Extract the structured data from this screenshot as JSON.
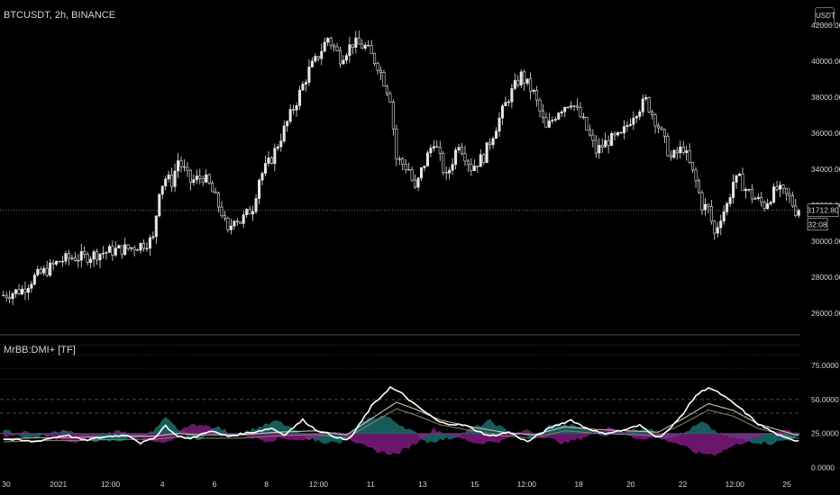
{
  "header": {
    "symbol_label": "BTCUSDT, 2h, BINANCE",
    "currency_badge": "USDT"
  },
  "indicator": {
    "label": "MrBB:DMI+ [TF]"
  },
  "price_marker": {
    "value_label": "31712.80",
    "countdown_label": "32:08"
  },
  "colors": {
    "background": "#000000",
    "text": "#d1d4dc",
    "candle": "#e6e6e6",
    "current_price_line": "#9598a1",
    "pane_divider": "#4a4e59",
    "band_red_dashed": "#5c2e2e",
    "dmi_plus_fill": "#1f7a7a",
    "dmi_minus_fill": "#8e1f8e",
    "adx_line": "#ffffff",
    "bb_line": "#c9c2a8"
  },
  "chart_data": [
    {
      "type": "candlestick",
      "title": "",
      "x_tick_labels": [
        "30",
        "2021",
        "12:00",
        "4",
        "6",
        "8",
        "12:00",
        "11",
        "13",
        "15",
        "12:00",
        "18",
        "20",
        "22",
        "12:00",
        "25"
      ],
      "y_tick_labels": [
        "42000.00",
        "40000.00",
        "38000.00",
        "36000.00",
        "34000.00",
        "32000.00",
        "30000.00",
        "28000.00",
        "26000.00"
      ],
      "ylim": [
        25000,
        43000
      ],
      "current_price": 31712.8,
      "close_path": [
        [
          0,
          27000
        ],
        [
          6,
          27300
        ],
        [
          10,
          28000
        ],
        [
          14,
          28400
        ],
        [
          18,
          28900
        ],
        [
          22,
          29100
        ],
        [
          26,
          29100
        ],
        [
          30,
          29300
        ],
        [
          36,
          29500
        ],
        [
          40,
          29600
        ],
        [
          44,
          29800
        ],
        [
          48,
          30100
        ],
        [
          50,
          32900
        ],
        [
          52,
          33500
        ],
        [
          54,
          33300
        ],
        [
          56,
          34500
        ],
        [
          60,
          33300
        ],
        [
          64,
          33600
        ],
        [
          66,
          33100
        ],
        [
          70,
          31600
        ],
        [
          72,
          30400
        ],
        [
          74,
          31400
        ],
        [
          76,
          31100
        ],
        [
          78,
          31500
        ],
        [
          80,
          31900
        ],
        [
          82,
          33500
        ],
        [
          86,
          34600
        ],
        [
          90,
          36200
        ],
        [
          94,
          37800
        ],
        [
          98,
          39500
        ],
        [
          100,
          40000
        ],
        [
          104,
          41300
        ],
        [
          108,
          40200
        ],
        [
          112,
          41000
        ],
        [
          116,
          40800
        ],
        [
          120,
          39800
        ],
        [
          124,
          38000
        ],
        [
          126,
          34600
        ],
        [
          130,
          34000
        ],
        [
          132,
          32800
        ],
        [
          134,
          33900
        ],
        [
          138,
          35600
        ],
        [
          142,
          33500
        ],
        [
          146,
          35500
        ],
        [
          150,
          34100
        ],
        [
          154,
          34700
        ],
        [
          158,
          36400
        ],
        [
          162,
          38000
        ],
        [
          166,
          39200
        ],
        [
          170,
          38200
        ],
        [
          174,
          36200
        ],
        [
          178,
          37300
        ],
        [
          182,
          37800
        ],
        [
          186,
          36600
        ],
        [
          190,
          35000
        ],
        [
          194,
          35600
        ],
        [
          198,
          35800
        ],
        [
          202,
          37100
        ],
        [
          206,
          37800
        ],
        [
          210,
          36400
        ],
        [
          214,
          34600
        ],
        [
          218,
          35200
        ],
        [
          222,
          33300
        ],
        [
          224,
          32000
        ],
        [
          226,
          31800
        ],
        [
          228,
          30400
        ],
        [
          230,
          31400
        ],
        [
          232,
          32000
        ],
        [
          234,
          33300
        ],
        [
          236,
          33400
        ],
        [
          238,
          32900
        ],
        [
          240,
          32500
        ],
        [
          244,
          32000
        ],
        [
          246,
          32500
        ],
        [
          248,
          32900
        ],
        [
          252,
          32400
        ],
        [
          254,
          31712.8
        ]
      ]
    },
    {
      "type": "line",
      "title": "MrBB:DMI+ [TF]",
      "y_tick_labels": [
        "75.0000",
        "50.0000",
        "25.0000",
        "0.0000"
      ],
      "ylim": [
        -3,
        95
      ],
      "hlines_dotted_red": [
        65,
        73,
        83,
        90
      ],
      "hlines_dashed": [
        50,
        40
      ],
      "hline_solid": 25,
      "series": [
        {
          "key": "adx",
          "values": [
            [
              0,
              21
            ],
            [
              10,
              19
            ],
            [
              20,
              24
            ],
            [
              26,
              20
            ],
            [
              34,
              23
            ],
            [
              40,
              24
            ],
            [
              44,
              18
            ],
            [
              48,
              21
            ],
            [
              52,
              31
            ],
            [
              55,
              24
            ],
            [
              60,
              21
            ],
            [
              66,
              27
            ],
            [
              72,
              23
            ],
            [
              80,
              26
            ],
            [
              86,
              29
            ],
            [
              90,
              24
            ],
            [
              96,
              35
            ],
            [
              100,
              28
            ],
            [
              106,
              23
            ],
            [
              110,
              20
            ],
            [
              112,
              24
            ],
            [
              118,
              45
            ],
            [
              124,
              59
            ],
            [
              128,
              54
            ],
            [
              132,
              46
            ],
            [
              140,
              33
            ],
            [
              148,
              31
            ],
            [
              156,
              23
            ],
            [
              162,
              26
            ],
            [
              168,
              19
            ],
            [
              176,
              30
            ],
            [
              182,
              35
            ],
            [
              186,
              30
            ],
            [
              192,
              25
            ],
            [
              198,
              27
            ],
            [
              204,
              31
            ],
            [
              210,
              22
            ],
            [
              214,
              29
            ],
            [
              218,
              40
            ],
            [
              222,
              53
            ],
            [
              226,
              59
            ],
            [
              230,
              54
            ],
            [
              236,
              44
            ],
            [
              242,
              32
            ],
            [
              250,
              22
            ],
            [
              254,
              20
            ]
          ]
        },
        {
          "key": "bb",
          "values": [
            [
              0,
              21
            ],
            [
              12,
              22
            ],
            [
              24,
              22
            ],
            [
              36,
              23
            ],
            [
              48,
              23
            ],
            [
              56,
              25
            ],
            [
              64,
              24
            ],
            [
              76,
              24
            ],
            [
              88,
              26
            ],
            [
              100,
              27
            ],
            [
              110,
              24
            ],
            [
              118,
              36
            ],
            [
              126,
              48
            ],
            [
              132,
              43
            ],
            [
              140,
              35
            ],
            [
              150,
              30
            ],
            [
              160,
              26
            ],
            [
              170,
              24
            ],
            [
              180,
              30
            ],
            [
              190,
              28
            ],
            [
              200,
              27
            ],
            [
              210,
              26
            ],
            [
              218,
              36
            ],
            [
              226,
              47
            ],
            [
              234,
              42
            ],
            [
              242,
              32
            ],
            [
              254,
              24
            ]
          ]
        },
        {
          "key": "dmi_plus",
          "values": [
            [
              0,
              27
            ],
            [
              8,
              22
            ],
            [
              14,
              24
            ],
            [
              20,
              28
            ],
            [
              26,
              22
            ],
            [
              32,
              19
            ],
            [
              40,
              21
            ],
            [
              48,
              26
            ],
            [
              52,
              36
            ],
            [
              56,
              28
            ],
            [
              62,
              20
            ],
            [
              68,
              30
            ],
            [
              74,
              24
            ],
            [
              80,
              28
            ],
            [
              88,
              34
            ],
            [
              94,
              26
            ],
            [
              100,
              20
            ],
            [
              108,
              18
            ],
            [
              116,
              35
            ],
            [
              122,
              38
            ],
            [
              130,
              28
            ],
            [
              136,
              19
            ],
            [
              144,
              22
            ],
            [
              150,
              28
            ],
            [
              156,
              34
            ],
            [
              162,
              26
            ],
            [
              170,
              22
            ],
            [
              176,
              32
            ],
            [
              184,
              30
            ],
            [
              192,
              24
            ],
            [
              200,
              27
            ],
            [
              206,
              29
            ],
            [
              212,
              22
            ],
            [
              218,
              25
            ],
            [
              224,
              33
            ],
            [
              230,
              24
            ],
            [
              238,
              20
            ],
            [
              246,
              18
            ],
            [
              254,
              22
            ]
          ]
        },
        {
          "key": "dmi_minus",
          "values": [
            [
              0,
              23
            ],
            [
              8,
              26
            ],
            [
              16,
              22
            ],
            [
              22,
              18
            ],
            [
              30,
              24
            ],
            [
              38,
              27
            ],
            [
              44,
              21
            ],
            [
              50,
              18
            ],
            [
              54,
              19
            ],
            [
              58,
              30
            ],
            [
              64,
              32
            ],
            [
              70,
              23
            ],
            [
              76,
              25
            ],
            [
              84,
              20
            ],
            [
              90,
              22
            ],
            [
              96,
              20
            ],
            [
              102,
              24
            ],
            [
              108,
              27
            ],
            [
              114,
              17
            ],
            [
              120,
              12
            ],
            [
              126,
              10
            ],
            [
              132,
              18
            ],
            [
              138,
              28
            ],
            [
              146,
              22
            ],
            [
              152,
              18
            ],
            [
              160,
              20
            ],
            [
              168,
              28
            ],
            [
              174,
              22
            ],
            [
              180,
              18
            ],
            [
              188,
              24
            ],
            [
              194,
              30
            ],
            [
              202,
              22
            ],
            [
              210,
              22
            ],
            [
              216,
              18
            ],
            [
              222,
              11
            ],
            [
              228,
              10
            ],
            [
              236,
              18
            ],
            [
              244,
              24
            ],
            [
              250,
              28
            ],
            [
              254,
              26
            ]
          ]
        }
      ]
    }
  ]
}
